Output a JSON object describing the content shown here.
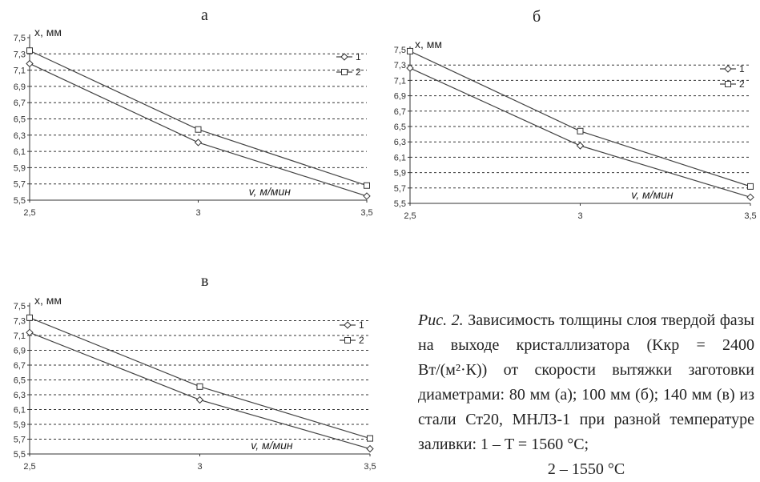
{
  "panels": [
    {
      "letter": "а"
    },
    {
      "letter": "б"
    },
    {
      "letter": "в"
    }
  ],
  "caption": {
    "lead": "Рис. 2.",
    "text": "Зависимость толщины слоя твердой фазы на выходе кристаллизатора (Kкр = 2400 Вт/(м²·К)) от скорости вытяжки заготовки диаметрами: 80 мм (а); 100 мм (б); 140 мм (в) из стали Ст20, МНЛЗ-1 при разной температуре заливки: 1 – T = 1560 °С;",
    "last": "2 – 1550 °С"
  },
  "chart_data": [
    {
      "type": "line",
      "panel": "а",
      "xlabel": "v, м/мин",
      "ylabel": "x, мм",
      "x": [
        2.5,
        3,
        3.5
      ],
      "x_ticks": [
        "2,5",
        "3",
        "3,5"
      ],
      "y_ticks": [
        "7,5",
        "7,3",
        "7,1",
        "6,9",
        "6,7",
        "6,5",
        "6,3",
        "6,1",
        "5,9",
        "5,7",
        "5,5"
      ],
      "ylim": [
        5.5,
        7.5
      ],
      "grid": "horizontal dashed",
      "legend": "top-right",
      "series": [
        {
          "name": "1",
          "marker": "diamond",
          "values": [
            7.18,
            6.21,
            5.55
          ]
        },
        {
          "name": "2",
          "marker": "square",
          "values": [
            7.34,
            6.37,
            5.68
          ]
        }
      ]
    },
    {
      "type": "line",
      "panel": "б",
      "xlabel": "v, м/мин",
      "ylabel": "x, мм",
      "x": [
        2.5,
        3,
        3.5
      ],
      "x_ticks": [
        "2,5",
        "3",
        "3,5"
      ],
      "y_ticks": [
        "7,5",
        "7,3",
        "7,1",
        "6,9",
        "6,7",
        "6,5",
        "6,3",
        "6,1",
        "5,9",
        "5,7",
        "5,5"
      ],
      "ylim": [
        5.5,
        7.5
      ],
      "grid": "horizontal dashed",
      "legend": "top-right",
      "series": [
        {
          "name": "1",
          "marker": "diamond",
          "values": [
            7.26,
            6.25,
            5.58
          ]
        },
        {
          "name": "2",
          "marker": "square",
          "values": [
            7.48,
            6.44,
            5.72
          ]
        }
      ]
    },
    {
      "type": "line",
      "panel": "в",
      "xlabel": "v, м/мин",
      "ylabel": "x, мм",
      "x": [
        2.5,
        3,
        3.5
      ],
      "x_ticks": [
        "2,5",
        "3",
        "3,5"
      ],
      "y_ticks": [
        "7,5",
        "7,3",
        "7,1",
        "6,9",
        "6,7",
        "6,5",
        "6,3",
        "6,1",
        "5,9",
        "5,7",
        "5,5"
      ],
      "ylim": [
        5.5,
        7.5
      ],
      "grid": "horizontal dashed",
      "legend": "top-right",
      "series": [
        {
          "name": "1",
          "marker": "diamond",
          "values": [
            7.14,
            6.23,
            5.57
          ]
        },
        {
          "name": "2",
          "marker": "square",
          "values": [
            7.34,
            6.41,
            5.71
          ]
        }
      ]
    }
  ]
}
